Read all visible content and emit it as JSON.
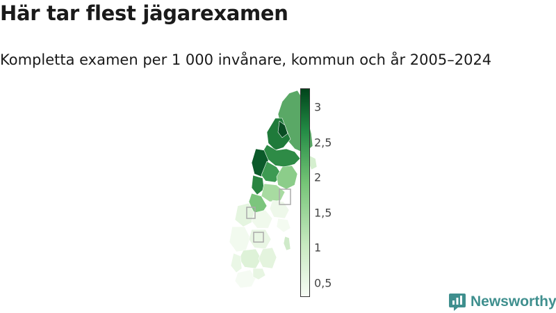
{
  "header": {
    "title": "Här tar flest jägarexamen",
    "subtitle": "Kompletta examen per 1 000 invånare, kommun och år 2005–2024"
  },
  "legend": {
    "ticks": [
      "3",
      "2,5",
      "2",
      "1,5",
      "1",
      "0,5"
    ],
    "tick_values": [
      3,
      2.5,
      2,
      1.5,
      1,
      0.5
    ],
    "range": [
      0.3,
      3.27
    ],
    "color_low": "#f7fcf5",
    "color_high": "#00441b",
    "colorscale": "Greens"
  },
  "map": {
    "region": "Sweden",
    "unit": "kommun",
    "inset_boxes_count": 3
  },
  "brand": {
    "name": "Newsworthy",
    "color": "#3f8f8e",
    "icon": "newsworthy-logo-icon"
  }
}
